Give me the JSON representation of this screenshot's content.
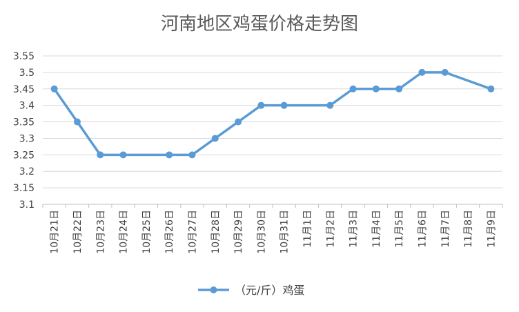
{
  "chart_data": {
    "type": "line",
    "title": "河南地区鸡蛋价格走势图",
    "xlabel": "",
    "ylabel": "",
    "categories": [
      "10月21日",
      "10月22日",
      "10月23日",
      "10月24日",
      "10月25日",
      "10月26日",
      "10月27日",
      "10月28日",
      "10月29日",
      "10月30日",
      "10月31日",
      "11月1日",
      "11月2日",
      "11月3日",
      "11月4日",
      "11月5日",
      "11月6日",
      "11月7日",
      "11月8日",
      "11月9日"
    ],
    "series": [
      {
        "name": "（元/斤）鸡蛋",
        "values": [
          3.45,
          3.35,
          3.25,
          3.25,
          null,
          3.25,
          3.25,
          3.3,
          3.35,
          3.4,
          3.4,
          null,
          3.4,
          3.45,
          3.45,
          3.45,
          3.5,
          3.5,
          null,
          3.45
        ]
      }
    ],
    "yticks": [
      "3.1",
      "3.15",
      "3.2",
      "3.25",
      "3.3",
      "3.35",
      "3.4",
      "3.45",
      "3.5",
      "3.55"
    ],
    "ylim": [
      3.1,
      3.55
    ],
    "grid": true,
    "legend_position": "bottom",
    "colors": {
      "series": "#5b9bd5",
      "grid": "#d9d9d9",
      "axis_text": "#404040",
      "title": "#595959"
    }
  }
}
